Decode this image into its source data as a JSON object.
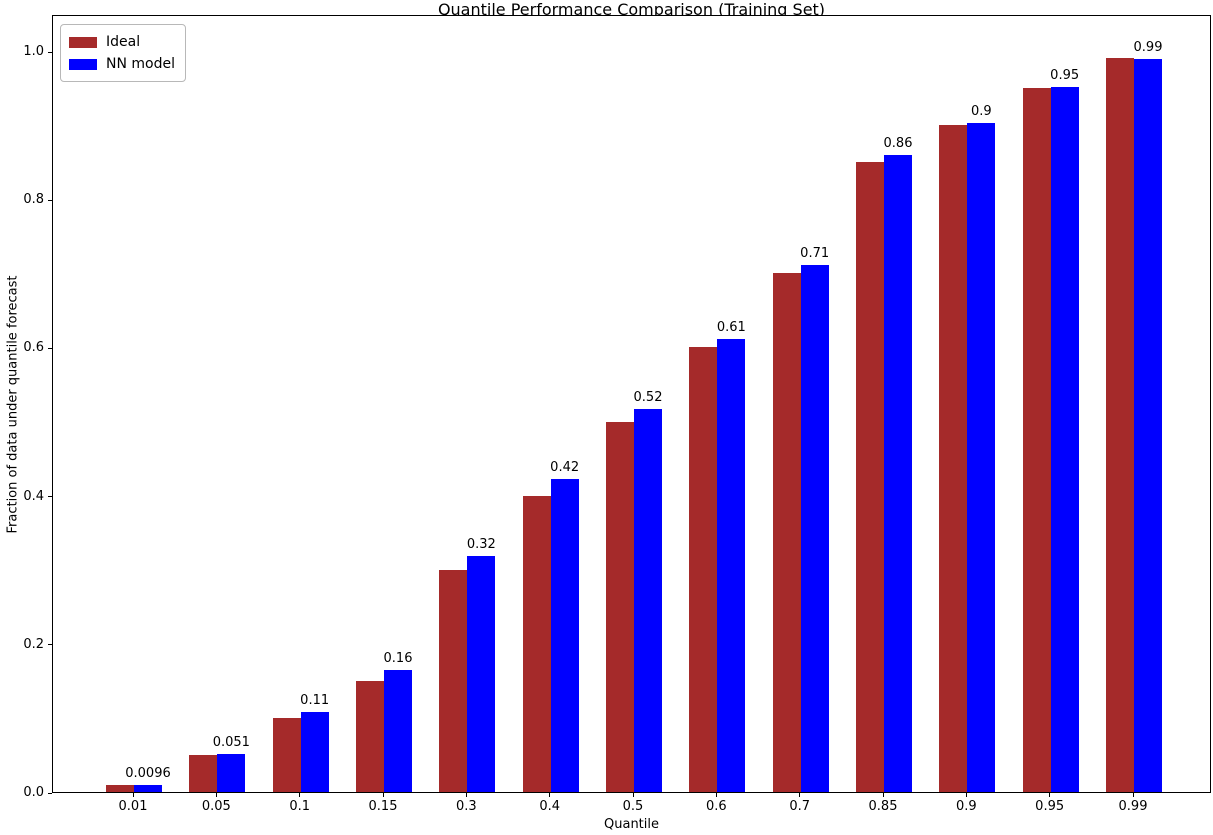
{
  "chart_data": {
    "type": "bar",
    "title": "Quantile Performance Comparison (Training Set)",
    "xlabel": "Quantile",
    "ylabel": "Fraction of data under quantile forecast",
    "categories": [
      "0.01",
      "0.05",
      "0.1",
      "0.15",
      "0.3",
      "0.4",
      "0.5",
      "0.6",
      "0.7",
      "0.85",
      "0.9",
      "0.95",
      "0.99"
    ],
    "series": [
      {
        "name": "Ideal",
        "color": "#A52A2A",
        "values": [
          0.01,
          0.05,
          0.1,
          0.15,
          0.3,
          0.4,
          0.5,
          0.6,
          0.7,
          0.85,
          0.9,
          0.95,
          0.99
        ]
      },
      {
        "name": "NN model",
        "color": "#0000FF",
        "values": [
          0.0096,
          0.051,
          0.108,
          0.164,
          0.319,
          0.423,
          0.517,
          0.611,
          0.711,
          0.859,
          0.903,
          0.951,
          0.989
        ],
        "bar_labels": [
          "0.0096",
          "0.051",
          "0.11",
          "0.16",
          "0.32",
          "0.42",
          "0.52",
          "0.61",
          "0.71",
          "0.86",
          "0.9",
          "0.95",
          "0.99"
        ]
      }
    ],
    "yticks": [
      "0.0",
      "0.2",
      "0.4",
      "0.6",
      "0.8",
      "1.0"
    ],
    "ylim": [
      0,
      1.05
    ],
    "grid": false,
    "legend": {
      "position": "upper-left",
      "entries": [
        "Ideal",
        "NN model"
      ]
    }
  },
  "colors": {
    "ideal": "#A52A2A",
    "nn_model": "#0000FF",
    "axis": "#000000",
    "background": "#FFFFFF"
  }
}
